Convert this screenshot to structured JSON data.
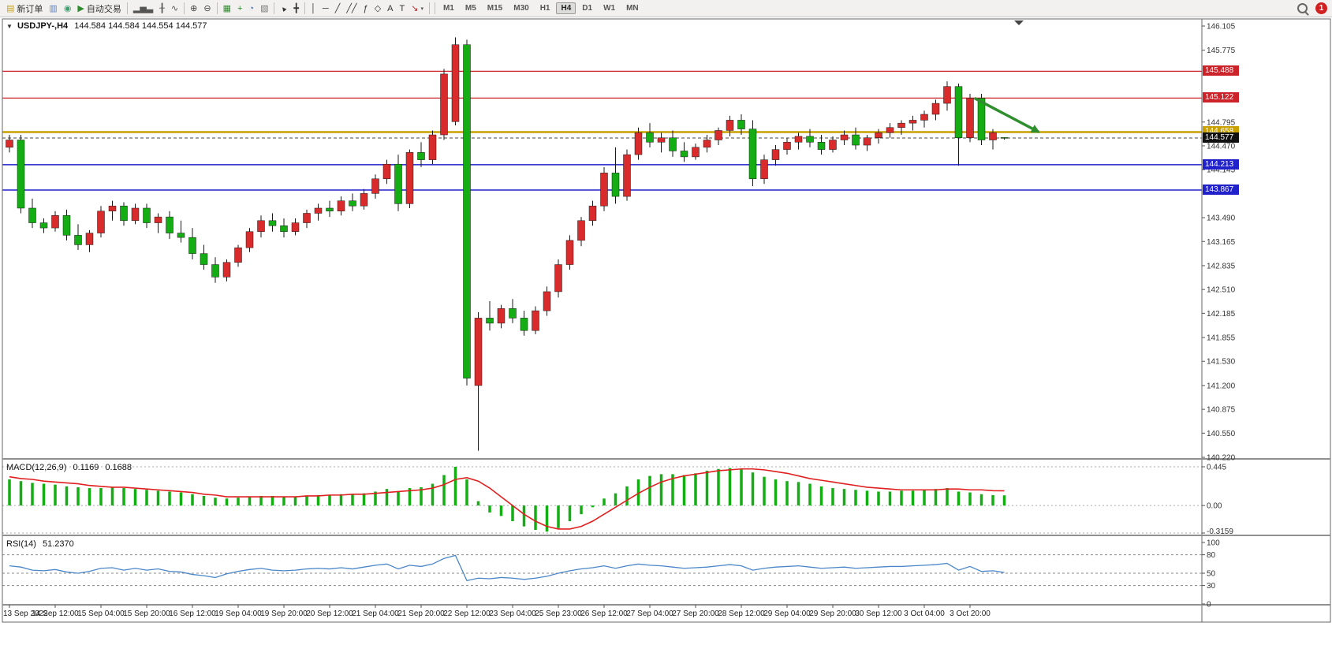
{
  "toolbar": {
    "items": [
      {
        "name": "new-order",
        "glyph": "▤",
        "color": "#c8a317",
        "label": "新订单"
      },
      {
        "name": "chart-window",
        "glyph": "▥",
        "color": "#5b7fc4"
      },
      {
        "name": "profiles",
        "glyph": "◉",
        "color": "#3f9e6e"
      },
      {
        "name": "autotrading",
        "glyph": "▶",
        "color": "#2e8b2e",
        "label": "自动交易"
      },
      {
        "sep": true
      },
      {
        "name": "bar-chart-mode",
        "glyph": "▂▅▃",
        "color": "#555555"
      },
      {
        "name": "candlestick-mode",
        "glyph": "╂",
        "color": "#555555"
      },
      {
        "name": "line-chart-mode",
        "glyph": "∿",
        "color": "#555555"
      },
      {
        "sep": true
      },
      {
        "name": "zoom-in",
        "glyph": "⊕",
        "color": "#444444"
      },
      {
        "name": "zoom-out",
        "glyph": "⊖",
        "color": "#444444"
      },
      {
        "sep": true
      },
      {
        "name": "tile-windows",
        "glyph": "▦",
        "color": "#2e8b2e"
      },
      {
        "name": "indicators-add",
        "glyph": "+",
        "color": "#2e8b2e"
      },
      {
        "name": "periods-clock",
        "glyph": "◔",
        "color": "#3a6fc4"
      },
      {
        "name": "templates",
        "glyph": "▧",
        "color": "#777777"
      },
      {
        "sep": true
      },
      {
        "name": "cursor",
        "glyph": "▲",
        "color": "#333333",
        "rotate": true
      },
      {
        "name": "crosshair",
        "glyph": "╋",
        "color": "#333333"
      },
      {
        "sep": true
      },
      {
        "name": "vertical-line",
        "glyph": "│",
        "color": "#333333"
      },
      {
        "name": "horizontal-line",
        "glyph": "─",
        "color": "#333333"
      },
      {
        "name": "trendline",
        "glyph": "╱",
        "color": "#333333"
      },
      {
        "name": "equidistant-channel",
        "glyph": "╱╱",
        "color": "#333333"
      },
      {
        "name": "fibonacci",
        "glyph": "ƒ",
        "color": "#333333"
      },
      {
        "name": "shapes",
        "glyph": "◇",
        "color": "#333333"
      },
      {
        "name": "text",
        "glyph": "A",
        "color": "#333333"
      },
      {
        "name": "text-label",
        "glyph": "T",
        "color": "#333333"
      },
      {
        "name": "arrows-tool",
        "glyph": "↘",
        "color": "#b03030",
        "dropdown": true
      },
      {
        "sep": true
      }
    ],
    "timeframes": [
      "M1",
      "M5",
      "M15",
      "M30",
      "H1",
      "H4",
      "D1",
      "W1",
      "MN"
    ],
    "active_timeframe": "H4",
    "notification_count": "1"
  },
  "chart": {
    "symbol_header": "USDJPY-,H4",
    "ohlc_header": "144.584 144.584 144.554 144.577"
  },
  "chart_data": {
    "type": "candlestick",
    "symbol": "USDJPY-",
    "timeframe": "H4",
    "colors": {
      "bull": "#d92b2b",
      "bear": "#14ad14",
      "wick": "#1a1a1a",
      "macd_bar": "#14ad14",
      "macd_signal": "#e02020",
      "rsi_line": "#4a86c8"
    },
    "price_axis": {
      "min": 140.22,
      "max": 146.105,
      "ticks": [
        "146.105",
        "145.775",
        "144.795",
        "144.470",
        "144.145",
        "143.490",
        "143.165",
        "142.835",
        "142.510",
        "142.185",
        "141.855",
        "141.530",
        "141.200",
        "140.875",
        "140.550",
        "140.220"
      ]
    },
    "time_labels": [
      "13 Sep 2022",
      "14 Sep 12:00",
      "15 Sep 04:00",
      "15 Sep 20:00",
      "16 Sep 12:00",
      "19 Sep 04:00",
      "19 Sep 20:00",
      "20 Sep 12:00",
      "21 Sep 04:00",
      "21 Sep 20:00",
      "22 Sep 12:00",
      "23 Sep 04:00",
      "25 Sep 23:00",
      "26 Sep 12:00",
      "27 Sep 04:00",
      "27 Sep 20:00",
      "28 Sep 12:00",
      "29 Sep 04:00",
      "29 Sep 20:00",
      "30 Sep 12:00",
      "3 Oct 04:00",
      "3 Oct 20:00"
    ],
    "candles": [
      [
        144.45,
        144.62,
        144.38,
        144.55
      ],
      [
        144.55,
        144.62,
        143.55,
        143.62
      ],
      [
        143.62,
        143.75,
        143.35,
        143.42
      ],
      [
        143.42,
        143.48,
        143.28,
        143.35
      ],
      [
        143.35,
        143.58,
        143.3,
        143.52
      ],
      [
        143.52,
        143.6,
        143.18,
        143.25
      ],
      [
        143.25,
        143.4,
        143.05,
        143.12
      ],
      [
        143.12,
        143.32,
        143.02,
        143.28
      ],
      [
        143.28,
        143.65,
        143.22,
        143.58
      ],
      [
        143.58,
        143.72,
        143.45,
        143.65
      ],
      [
        143.65,
        143.7,
        143.38,
        143.45
      ],
      [
        143.45,
        143.68,
        143.4,
        143.62
      ],
      [
        143.62,
        143.68,
        143.35,
        143.42
      ],
      [
        143.42,
        143.55,
        143.28,
        143.5
      ],
      [
        143.5,
        143.58,
        143.2,
        143.28
      ],
      [
        143.28,
        143.45,
        143.15,
        143.22
      ],
      [
        143.22,
        143.35,
        142.92,
        143.0
      ],
      [
        143.0,
        143.12,
        142.78,
        142.85
      ],
      [
        142.85,
        142.95,
        142.6,
        142.68
      ],
      [
        142.68,
        142.92,
        142.62,
        142.88
      ],
      [
        142.88,
        143.12,
        142.82,
        143.08
      ],
      [
        143.08,
        143.35,
        143.02,
        143.3
      ],
      [
        143.3,
        143.52,
        143.22,
        143.45
      ],
      [
        143.45,
        143.55,
        143.3,
        143.38
      ],
      [
        143.38,
        143.48,
        143.22,
        143.3
      ],
      [
        143.3,
        143.48,
        143.25,
        143.42
      ],
      [
        143.42,
        143.6,
        143.35,
        143.55
      ],
      [
        143.55,
        143.68,
        143.45,
        143.62
      ],
      [
        143.62,
        143.72,
        143.5,
        143.58
      ],
      [
        143.58,
        143.78,
        143.52,
        143.72
      ],
      [
        143.72,
        143.82,
        143.58,
        143.65
      ],
      [
        143.65,
        143.88,
        143.6,
        143.82
      ],
      [
        143.82,
        144.08,
        143.75,
        144.02
      ],
      [
        144.02,
        144.28,
        143.95,
        144.22
      ],
      [
        144.22,
        144.35,
        143.58,
        143.68
      ],
      [
        143.68,
        144.42,
        143.62,
        144.38
      ],
      [
        144.38,
        144.52,
        144.18,
        144.28
      ],
      [
        144.28,
        144.68,
        144.22,
        144.62
      ],
      [
        144.62,
        145.52,
        144.55,
        145.45
      ],
      [
        144.8,
        145.95,
        144.75,
        145.85
      ],
      [
        145.85,
        145.92,
        141.2,
        141.3
      ],
      [
        141.2,
        142.2,
        140.31,
        142.12
      ],
      [
        142.12,
        142.35,
        141.95,
        142.05
      ],
      [
        142.05,
        142.3,
        141.98,
        142.25
      ],
      [
        142.25,
        142.38,
        142.05,
        142.12
      ],
      [
        142.12,
        142.22,
        141.88,
        141.95
      ],
      [
        141.95,
        142.28,
        141.9,
        142.22
      ],
      [
        142.22,
        142.55,
        142.15,
        142.48
      ],
      [
        142.48,
        142.92,
        142.4,
        142.85
      ],
      [
        142.85,
        143.25,
        142.78,
        143.18
      ],
      [
        143.18,
        143.5,
        143.1,
        143.45
      ],
      [
        143.45,
        143.72,
        143.38,
        143.65
      ],
      [
        143.65,
        144.18,
        143.58,
        144.1
      ],
      [
        144.1,
        144.45,
        143.68,
        143.78
      ],
      [
        143.78,
        144.42,
        143.72,
        144.35
      ],
      [
        144.35,
        144.72,
        144.28,
        144.65
      ],
      [
        144.65,
        144.78,
        144.45,
        144.52
      ],
      [
        144.52,
        144.65,
        144.38,
        144.58
      ],
      [
        144.58,
        144.68,
        144.32,
        144.4
      ],
      [
        144.4,
        144.52,
        144.25,
        144.32
      ],
      [
        144.32,
        144.5,
        144.28,
        144.45
      ],
      [
        144.45,
        144.62,
        144.38,
        144.55
      ],
      [
        144.55,
        144.72,
        144.48,
        144.68
      ],
      [
        144.68,
        144.88,
        144.6,
        144.82
      ],
      [
        144.82,
        144.9,
        144.62,
        144.7
      ],
      [
        144.7,
        144.82,
        143.92,
        144.02
      ],
      [
        144.02,
        144.35,
        143.95,
        144.28
      ],
      [
        144.28,
        144.48,
        144.2,
        144.42
      ],
      [
        144.42,
        144.58,
        144.35,
        144.52
      ],
      [
        144.52,
        144.65,
        144.42,
        144.6
      ],
      [
        144.6,
        144.7,
        144.45,
        144.52
      ],
      [
        144.52,
        144.62,
        144.35,
        144.42
      ],
      [
        144.42,
        144.6,
        144.38,
        144.55
      ],
      [
        144.55,
        144.68,
        144.48,
        144.62
      ],
      [
        144.62,
        144.72,
        144.42,
        144.48
      ],
      [
        144.48,
        144.62,
        144.4,
        144.58
      ],
      [
        144.58,
        144.7,
        144.5,
        144.65
      ],
      [
        144.65,
        144.78,
        144.58,
        144.72
      ],
      [
        144.72,
        144.82,
        144.62,
        144.78
      ],
      [
        144.78,
        144.88,
        144.68,
        144.82
      ],
      [
        144.82,
        144.95,
        144.72,
        144.9
      ],
      [
        144.9,
        145.1,
        144.82,
        145.05
      ],
      [
        145.05,
        145.35,
        144.95,
        145.28
      ],
      [
        145.28,
        145.32,
        144.2,
        144.58
      ],
      [
        144.58,
        145.18,
        144.52,
        145.12
      ],
      [
        145.12,
        145.18,
        144.48,
        144.55
      ],
      [
        144.55,
        144.7,
        144.42,
        144.65
      ],
      [
        144.584,
        144.584,
        144.554,
        144.577
      ]
    ],
    "hlines": [
      {
        "price": 145.488,
        "label": "145.488",
        "color": "#cc2229",
        "width": 1.2
      },
      {
        "price": 145.122,
        "label": "145.122",
        "color": "#cc2229",
        "width": 1.2
      },
      {
        "price": 144.658,
        "label": "144.658",
        "color": "#c8a000",
        "width": 2.5
      },
      {
        "price": 144.213,
        "label": "144.213",
        "color": "#2121cc",
        "width": 1.5
      },
      {
        "price": 143.867,
        "label": "143.867",
        "color": "#2121cc",
        "width": 1.5
      }
    ],
    "current_price": {
      "price": 144.577,
      "label": "144.577",
      "color": "#111111"
    },
    "arrow": {
      "from": {
        "idx": 84.4,
        "price": 145.12
      },
      "to": {
        "idx": 90,
        "price": 144.66
      },
      "color": "#2f8f2f"
    },
    "macd": {
      "label": "MACD(12,26,9)",
      "main_value": "0.1169",
      "signal_value": "0.1688",
      "range": [
        -0.3159,
        0.445
      ],
      "axis_ticks": [
        {
          "v": 0.445,
          "t": "0.445"
        },
        {
          "v": 0,
          "t": "0.00"
        },
        {
          "v": -0.3159,
          "t": "-0.3159"
        }
      ],
      "hist": [
        0.3,
        0.28,
        0.26,
        0.25,
        0.24,
        0.22,
        0.21,
        0.2,
        0.2,
        0.21,
        0.2,
        0.19,
        0.18,
        0.17,
        0.16,
        0.15,
        0.13,
        0.11,
        0.09,
        0.08,
        0.09,
        0.1,
        0.11,
        0.11,
        0.1,
        0.1,
        0.11,
        0.12,
        0.12,
        0.13,
        0.13,
        0.14,
        0.16,
        0.19,
        0.16,
        0.2,
        0.21,
        0.25,
        0.35,
        0.445,
        0.3,
        0.05,
        -0.08,
        -0.12,
        -0.18,
        -0.24,
        -0.28,
        -0.3,
        -0.26,
        -0.18,
        -0.1,
        -0.02,
        0.08,
        0.14,
        0.22,
        0.3,
        0.34,
        0.36,
        0.36,
        0.35,
        0.37,
        0.4,
        0.42,
        0.43,
        0.42,
        0.38,
        0.33,
        0.3,
        0.28,
        0.27,
        0.25,
        0.22,
        0.2,
        0.19,
        0.18,
        0.17,
        0.16,
        0.16,
        0.17,
        0.17,
        0.18,
        0.19,
        0.2,
        0.16,
        0.15,
        0.13,
        0.12,
        0.1169
      ],
      "signal": [
        0.33,
        0.31,
        0.3,
        0.28,
        0.27,
        0.26,
        0.25,
        0.23,
        0.22,
        0.21,
        0.21,
        0.2,
        0.19,
        0.18,
        0.17,
        0.16,
        0.15,
        0.13,
        0.12,
        0.1,
        0.1,
        0.1,
        0.1,
        0.1,
        0.1,
        0.1,
        0.11,
        0.11,
        0.12,
        0.12,
        0.13,
        0.13,
        0.14,
        0.15,
        0.16,
        0.17,
        0.18,
        0.2,
        0.24,
        0.3,
        0.32,
        0.28,
        0.2,
        0.1,
        0.0,
        -0.1,
        -0.18,
        -0.24,
        -0.27,
        -0.27,
        -0.24,
        -0.18,
        -0.1,
        -0.02,
        0.06,
        0.14,
        0.21,
        0.27,
        0.31,
        0.34,
        0.36,
        0.38,
        0.4,
        0.41,
        0.42,
        0.42,
        0.41,
        0.39,
        0.37,
        0.34,
        0.31,
        0.29,
        0.27,
        0.25,
        0.23,
        0.21,
        0.2,
        0.19,
        0.18,
        0.18,
        0.18,
        0.18,
        0.19,
        0.19,
        0.18,
        0.18,
        0.17,
        0.1688
      ]
    },
    "rsi": {
      "label": "RSI(14)",
      "value": "51.2370",
      "axis_ticks": [
        {
          "v": 100,
          "t": "100"
        },
        {
          "v": 80,
          "t": "80"
        },
        {
          "v": 50,
          "t": "50"
        },
        {
          "v": 30,
          "t": "30"
        },
        {
          "v": 0,
          "t": "0"
        }
      ],
      "levels": [
        80,
        50,
        30
      ],
      "values": [
        62,
        60,
        55,
        54,
        56,
        52,
        50,
        53,
        58,
        59,
        55,
        58,
        55,
        57,
        53,
        52,
        48,
        46,
        43,
        49,
        53,
        56,
        58,
        55,
        54,
        55,
        57,
        58,
        57,
        59,
        57,
        60,
        63,
        65,
        57,
        63,
        61,
        65,
        74,
        79,
        38,
        42,
        41,
        43,
        42,
        40,
        42,
        45,
        50,
        54,
        57,
        59,
        62,
        58,
        62,
        65,
        63,
        62,
        60,
        58,
        59,
        60,
        62,
        64,
        62,
        55,
        58,
        60,
        61,
        62,
        60,
        58,
        59,
        60,
        58,
        59,
        60,
        61,
        61,
        62,
        63,
        64,
        66,
        55,
        61,
        53,
        54,
        51.24
      ]
    }
  }
}
